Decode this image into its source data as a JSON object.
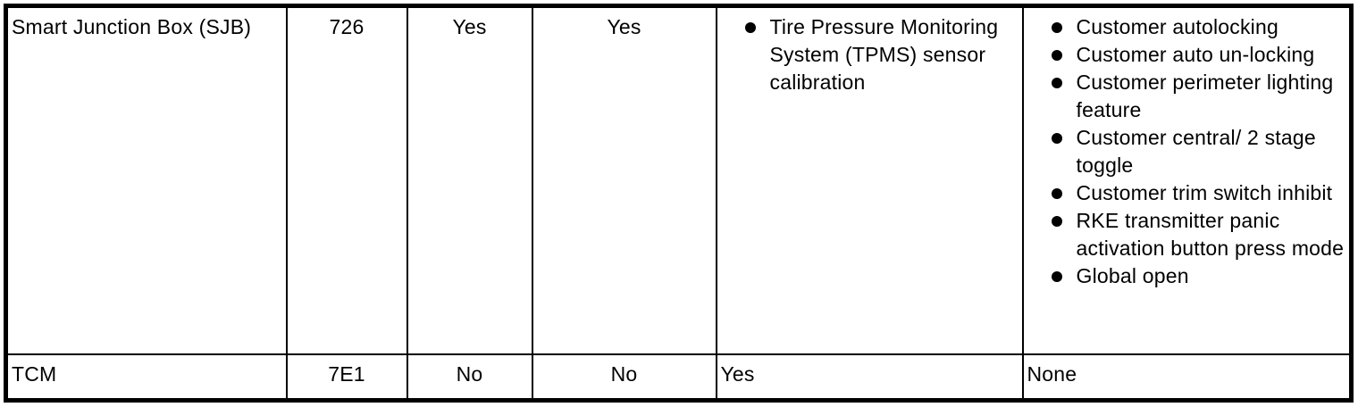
{
  "colors": {
    "background": "#ffffff",
    "border": "#000000",
    "text": "#000000"
  },
  "table": {
    "rows": [
      {
        "module": "Smart Junction Box (SJB)",
        "address": "726",
        "flag_a": "Yes",
        "flag_b": "Yes",
        "procedures": [
          "Tire Pressure Monitoring System (TPMS) sensor calibration"
        ],
        "features": [
          "Customer autolocking",
          "Customer auto un-locking",
          "Customer perimeter lighting feature",
          "Customer central/ 2 stage toggle",
          "Customer trim switch inhibit",
          "RKE transmitter panic activation button press mode",
          "Global open"
        ]
      },
      {
        "module": "TCM",
        "address": "7E1",
        "flag_a": "No",
        "flag_b": "No",
        "procedures_text": "Yes",
        "features_text": "None"
      }
    ]
  }
}
